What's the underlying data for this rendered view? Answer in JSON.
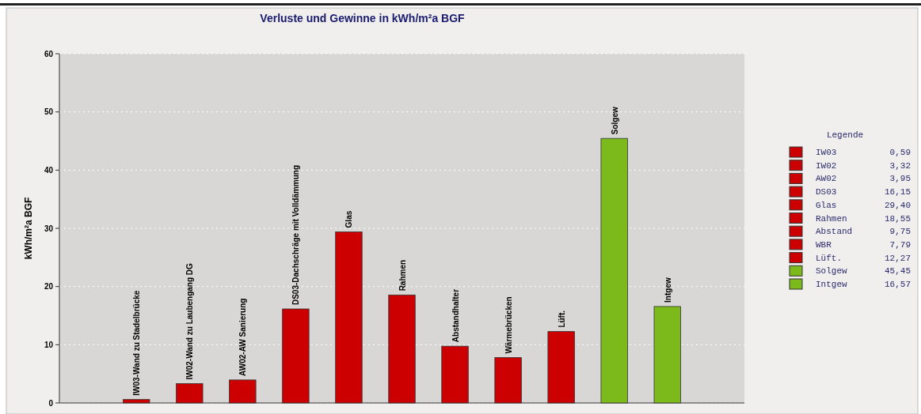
{
  "chart_data": {
    "type": "bar",
    "title": "Verluste und Gewinne in kWh/m²a BGF",
    "ylabel": "kWh/m²a BGF",
    "legend_title": "Legende",
    "categories": [
      "IW03-Wand zu Stadelbrücke",
      "IW02-Wand zu Laubengang DG",
      "AW02-AW Sanierung",
      "DS03-Dachschräge mit Volldämmung",
      "Glas",
      "Rahmen",
      "Abstandhalter",
      "Wärmebrücken",
      "Lüft.",
      "Solgew",
      "Intgew"
    ],
    "stacked": true,
    "annotations": [
      "0,59",
      "3,32",
      "3,95",
      "16,15",
      "29,40",
      "18,55",
      "9,75",
      "7,79",
      "12,27",
      "45,45",
      "16,57"
    ],
    "ylim": [
      0,
      60
    ],
    "yticks": [
      0,
      10,
      20,
      30,
      40,
      50,
      60
    ],
    "grid": "y",
    "legend": "right",
    "series": [
      {
        "name": "IW03",
        "color": "#cc0000",
        "values": [
          0.59,
          null,
          null,
          null,
          null,
          null,
          null,
          null,
          null,
          null,
          null
        ]
      },
      {
        "name": "IW02",
        "color": "#cc0000",
        "values": [
          null,
          3.32,
          null,
          null,
          null,
          null,
          null,
          null,
          null,
          null,
          null
        ]
      },
      {
        "name": "AW02",
        "color": "#cc0000",
        "values": [
          null,
          null,
          3.95,
          null,
          null,
          null,
          null,
          null,
          null,
          null,
          null
        ]
      },
      {
        "name": "DS03",
        "color": "#cc0000",
        "values": [
          null,
          null,
          null,
          16.15,
          null,
          null,
          null,
          null,
          null,
          null,
          null
        ]
      },
      {
        "name": "Glas",
        "color": "#cc0000",
        "values": [
          null,
          null,
          null,
          null,
          29.4,
          null,
          null,
          null,
          null,
          null,
          null
        ]
      },
      {
        "name": "Rahmen",
        "color": "#cc0000",
        "values": [
          null,
          null,
          null,
          null,
          null,
          18.55,
          null,
          null,
          null,
          null,
          null
        ]
      },
      {
        "name": "Abstand",
        "color": "#cc0000",
        "values": [
          null,
          null,
          null,
          null,
          null,
          null,
          9.75,
          null,
          null,
          null,
          null
        ]
      },
      {
        "name": "WBR",
        "color": "#cc0000",
        "values": [
          null,
          null,
          null,
          null,
          null,
          null,
          null,
          7.79,
          null,
          null,
          null
        ]
      },
      {
        "name": "Lüft.",
        "color": "#cc0000",
        "values": [
          null,
          null,
          null,
          null,
          null,
          null,
          null,
          null,
          12.27,
          null,
          null
        ]
      },
      {
        "name": "Solgew",
        "color": "#7cba1c",
        "values": [
          null,
          null,
          null,
          null,
          null,
          null,
          null,
          null,
          null,
          45.45,
          null
        ]
      },
      {
        "name": "Intgew",
        "color": "#7cba1c",
        "values": [
          null,
          null,
          null,
          null,
          null,
          null,
          null,
          null,
          null,
          null,
          16.57
        ]
      }
    ]
  }
}
